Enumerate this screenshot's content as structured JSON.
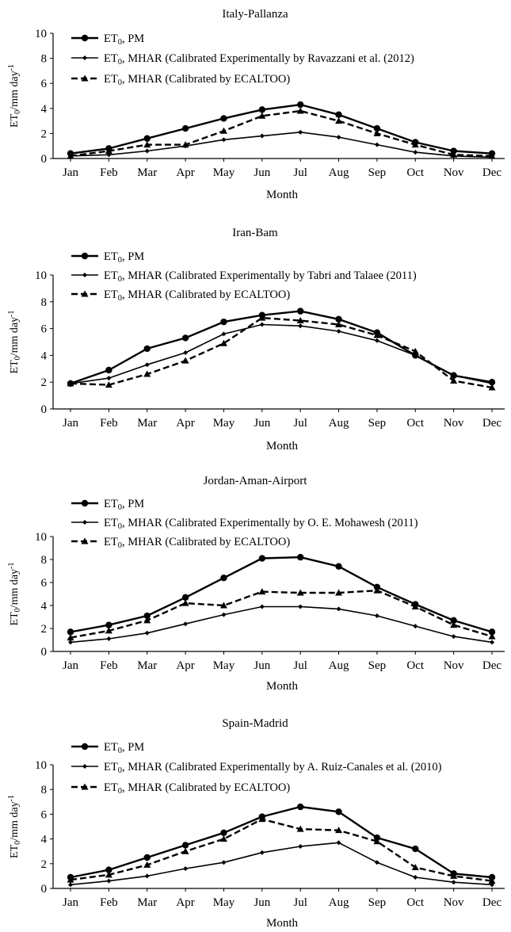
{
  "chart_data": [
    {
      "type": "line",
      "title": "Italy-Pallanza",
      "xlabel": "Month",
      "ylabel_prefix": "ET",
      "ylabel_sub": "0",
      "ylabel_unit": "/mm day",
      "ylabel_sup": "-1",
      "categories": [
        "Jan",
        "Feb",
        "Mar",
        "Apr",
        "May",
        "Jun",
        "Jul",
        "Aug",
        "Sep",
        "Oct",
        "Nov",
        "Dec"
      ],
      "ylim": [
        0,
        10
      ],
      "yticks": [
        0,
        2,
        4,
        6,
        8,
        10
      ],
      "series": [
        {
          "legend_prefix": "ET",
          "legend_sub": "0",
          "legend_rest": ", PM",
          "marker": "circle",
          "dash": "solid",
          "weight": "bold",
          "values": [
            0.4,
            0.8,
            1.6,
            2.4,
            3.2,
            3.9,
            4.3,
            3.5,
            2.4,
            1.3,
            0.6,
            0.4
          ]
        },
        {
          "legend_prefix": "ET",
          "legend_sub": "0",
          "legend_rest": ", MHAR (Calibrated Experimentally by Ravazzani et al. (2012)",
          "marker": "diamond",
          "dash": "solid",
          "weight": "normal",
          "values": [
            0.2,
            0.3,
            0.6,
            1.0,
            1.5,
            1.8,
            2.1,
            1.7,
            1.1,
            0.5,
            0.2,
            0.1
          ]
        },
        {
          "legend_prefix": "ET",
          "legend_sub": "0",
          "legend_rest": ", MHAR (Calibrated by ECALTOO)",
          "marker": "triangle",
          "dash": "dashed",
          "weight": "bold",
          "values": [
            0.2,
            0.6,
            1.1,
            1.1,
            2.2,
            3.4,
            3.8,
            3.0,
            2.0,
            1.1,
            0.3,
            0.2
          ]
        }
      ]
    },
    {
      "type": "line",
      "title": "Iran-Bam",
      "xlabel": "Month",
      "ylabel_prefix": "ET",
      "ylabel_sub": "0",
      "ylabel_unit": "/mm day",
      "ylabel_sup": "-1",
      "categories": [
        "Jan",
        "Feb",
        "Mar",
        "Apr",
        "May",
        "Jun",
        "Jul",
        "Aug",
        "Sep",
        "Oct",
        "Nov",
        "Dec"
      ],
      "ylim": [
        0,
        10
      ],
      "yticks": [
        0,
        2,
        4,
        6,
        8,
        10
      ],
      "series": [
        {
          "legend_prefix": "ET",
          "legend_sub": "0",
          "legend_rest": ", PM",
          "marker": "circle",
          "dash": "solid",
          "weight": "bold",
          "values": [
            1.9,
            2.9,
            4.5,
            5.3,
            6.5,
            7.0,
            7.3,
            6.7,
            5.7,
            4.0,
            2.5,
            2.0
          ]
        },
        {
          "legend_prefix": "ET",
          "legend_sub": "0",
          "legend_rest": ", MHAR (Calibrated Experimentally by Tabri and Talaee (2011)",
          "marker": "diamond",
          "dash": "solid",
          "weight": "normal",
          "values": [
            1.9,
            2.3,
            3.3,
            4.2,
            5.6,
            6.3,
            6.2,
            5.8,
            5.1,
            4.0,
            2.5,
            1.9
          ]
        },
        {
          "legend_prefix": "ET",
          "legend_sub": "0",
          "legend_rest": ", MHAR (Calibrated by ECALTOO)",
          "marker": "triangle",
          "dash": "dashed",
          "weight": "bold",
          "values": [
            1.9,
            1.8,
            2.6,
            3.6,
            4.9,
            6.8,
            6.6,
            6.3,
            5.5,
            4.3,
            2.1,
            1.6
          ]
        }
      ]
    },
    {
      "type": "line",
      "title": "Jordan-Aman-Airport",
      "xlabel": "Month",
      "ylabel_prefix": "ET",
      "ylabel_sub": "0",
      "ylabel_unit": "/mm day",
      "ylabel_sup": "-1",
      "categories": [
        "Jan",
        "Feb",
        "Mar",
        "Apr",
        "May",
        "Jun",
        "Jul",
        "Aug",
        "Sep",
        "Oct",
        "Nov",
        "Dec"
      ],
      "ylim": [
        0,
        10
      ],
      "yticks": [
        0,
        2,
        4,
        6,
        8,
        10
      ],
      "series": [
        {
          "legend_prefix": "ET",
          "legend_sub": "0",
          "legend_rest": ", PM",
          "marker": "circle",
          "dash": "solid",
          "weight": "bold",
          "values": [
            1.7,
            2.3,
            3.1,
            4.7,
            6.4,
            8.1,
            8.2,
            7.4,
            5.6,
            4.1,
            2.7,
            1.7
          ]
        },
        {
          "legend_prefix": "ET",
          "legend_sub": "0",
          "legend_rest": ", MHAR (Calibrated Experimentally by O. E. Mohawesh (2011)",
          "marker": "diamond",
          "dash": "solid",
          "weight": "normal",
          "values": [
            0.8,
            1.1,
            1.6,
            2.4,
            3.2,
            3.9,
            3.9,
            3.7,
            3.1,
            2.2,
            1.3,
            0.8
          ]
        },
        {
          "legend_prefix": "ET",
          "legend_sub": "0",
          "legend_rest": ", MHAR (Calibrated by ECALTOO)",
          "marker": "triangle",
          "dash": "dashed",
          "weight": "bold",
          "values": [
            1.2,
            1.8,
            2.7,
            4.2,
            4.0,
            5.2,
            5.1,
            5.1,
            5.3,
            3.9,
            2.3,
            1.3
          ]
        }
      ]
    },
    {
      "type": "line",
      "title": "Spain-Madrid",
      "xlabel": "Month",
      "ylabel_prefix": "ET",
      "ylabel_sub": "0",
      "ylabel_unit": "/mm day",
      "ylabel_sup": "-1",
      "categories": [
        "Jan",
        "Feb",
        "Mar",
        "Apr",
        "May",
        "Jun",
        "Jul",
        "Aug",
        "Sep",
        "Oct",
        "Nov",
        "Dec"
      ],
      "ylim": [
        0,
        10
      ],
      "yticks": [
        0,
        2,
        4,
        6,
        8,
        10
      ],
      "series": [
        {
          "legend_prefix": "ET",
          "legend_sub": "0",
          "legend_rest": ", PM",
          "marker": "circle",
          "dash": "solid",
          "weight": "bold",
          "values": [
            0.9,
            1.5,
            2.5,
            3.5,
            4.5,
            5.8,
            6.6,
            6.2,
            4.1,
            3.2,
            1.2,
            0.9
          ]
        },
        {
          "legend_prefix": "ET",
          "legend_sub": "0",
          "legend_rest": ", MHAR (Calibrated Experimentally by A. Ruiz-Canales et al.  (2010)",
          "marker": "diamond",
          "dash": "solid",
          "weight": "normal",
          "values": [
            0.3,
            0.6,
            1.0,
            1.6,
            2.1,
            2.9,
            3.4,
            3.7,
            2.1,
            0.9,
            0.5,
            0.3
          ]
        },
        {
          "legend_prefix": "ET",
          "legend_sub": "0",
          "legend_rest": ", MHAR (Calibrated by ECALTOO)",
          "marker": "triangle",
          "dash": "dashed",
          "weight": "bold",
          "values": [
            0.7,
            1.1,
            1.9,
            3.0,
            4.0,
            5.6,
            4.8,
            4.7,
            3.8,
            1.7,
            1.0,
            0.6
          ]
        }
      ]
    }
  ]
}
